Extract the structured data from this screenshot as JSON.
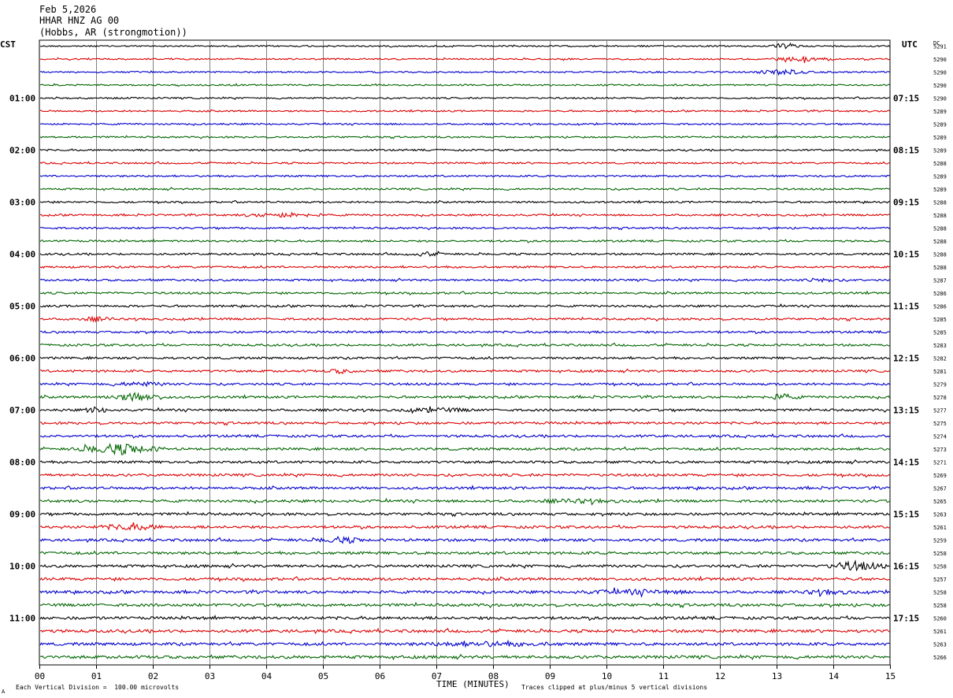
{
  "header": {
    "date": "Feb 5,2026",
    "station": "HHAR HNZ AG 00",
    "location": "(Hobbs, AR (strongmotion))"
  },
  "left_zone": "CST",
  "right_zone": "UTC",
  "dc_label": "DC",
  "footer": {
    "scale_note": "Each Vertical Division =  100.00 microvolts",
    "clip_note": "Traces clipped at plus/minus 5 vertical divisions",
    "corner_mark": "A"
  },
  "chart_data": {
    "type": "line",
    "xlabel": "TIME (MINUTES)",
    "xlim": [
      0,
      15
    ],
    "x_ticks": [
      "00",
      "01",
      "02",
      "03",
      "04",
      "05",
      "06",
      "07",
      "08",
      "09",
      "10",
      "11",
      "12",
      "13",
      "14",
      "15"
    ],
    "trace_colors": [
      "#000000",
      "#dd0000",
      "#0000cc",
      "#006600"
    ],
    "left_time_labels": [
      "01:00",
      "02:00",
      "03:00",
      "04:00",
      "05:00",
      "06:00",
      "07:00",
      "08:00",
      "09:00",
      "10:00",
      "11:00"
    ],
    "right_time_labels": [
      "07:15",
      "08:15",
      "09:15",
      "10:15",
      "11:15",
      "12:15",
      "13:15",
      "14:15",
      "15:15",
      "16:15",
      "17:15"
    ],
    "dc_values": [
      "5291",
      "5290",
      "5290",
      "5290",
      "5290",
      "5289",
      "5289",
      "5289",
      "5289",
      "5288",
      "5289",
      "5289",
      "5288",
      "5288",
      "5288",
      "5288",
      "5288",
      "5288",
      "5287",
      "5286",
      "5286",
      "5285",
      "5285",
      "5283",
      "5282",
      "5281",
      "5279",
      "5278",
      "5277",
      "5275",
      "5274",
      "5273",
      "5271",
      "5269",
      "5267",
      "5265",
      "5263",
      "5261",
      "5259",
      "5258",
      "5258",
      "5257",
      "5258",
      "5258",
      "5260",
      "5261",
      "5263",
      "5266"
    ],
    "events": [
      {
        "trace": 0,
        "minute": 13.2,
        "amp": 3,
        "dur": 0.3
      },
      {
        "trace": 1,
        "minute": 13.5,
        "amp": 2,
        "dur": 0.8
      },
      {
        "trace": 2,
        "minute": 13.1,
        "amp": 3,
        "dur": 0.6
      },
      {
        "trace": 13,
        "minute": 4.3,
        "amp": 2,
        "dur": 0.9
      },
      {
        "trace": 16,
        "minute": 6.8,
        "amp": 2,
        "dur": 0.4
      },
      {
        "trace": 18,
        "minute": 13.8,
        "amp": 2,
        "dur": 0.4
      },
      {
        "trace": 21,
        "minute": 1.0,
        "amp": 2,
        "dur": 0.4
      },
      {
        "trace": 25,
        "minute": 5.3,
        "amp": 2,
        "dur": 0.3
      },
      {
        "trace": 26,
        "minute": 1.8,
        "amp": 2,
        "dur": 0.6
      },
      {
        "trace": 27,
        "minute": 1.7,
        "amp": 4,
        "dur": 0.7
      },
      {
        "trace": 27,
        "minute": 13.1,
        "amp": 3,
        "dur": 0.4
      },
      {
        "trace": 28,
        "minute": 1.0,
        "amp": 3,
        "dur": 0.3
      },
      {
        "trace": 28,
        "minute": 7.0,
        "amp": 2,
        "dur": 0.8
      },
      {
        "trace": 31,
        "minute": 1.4,
        "amp": 6,
        "dur": 0.9
      },
      {
        "trace": 35,
        "minute": 9.5,
        "amp": 1.5,
        "dur": 1.0
      },
      {
        "trace": 37,
        "minute": 1.6,
        "amp": 3,
        "dur": 0.7
      },
      {
        "trace": 38,
        "minute": 5.3,
        "amp": 3,
        "dur": 0.5
      },
      {
        "trace": 40,
        "minute": 14.4,
        "amp": 5,
        "dur": 0.6
      },
      {
        "trace": 42,
        "minute": 10.5,
        "amp": 2,
        "dur": 1.2
      },
      {
        "trace": 42,
        "minute": 13.9,
        "amp": 2,
        "dur": 0.6
      },
      {
        "trace": 46,
        "minute": 7.9,
        "amp": 2,
        "dur": 1.5
      }
    ]
  }
}
